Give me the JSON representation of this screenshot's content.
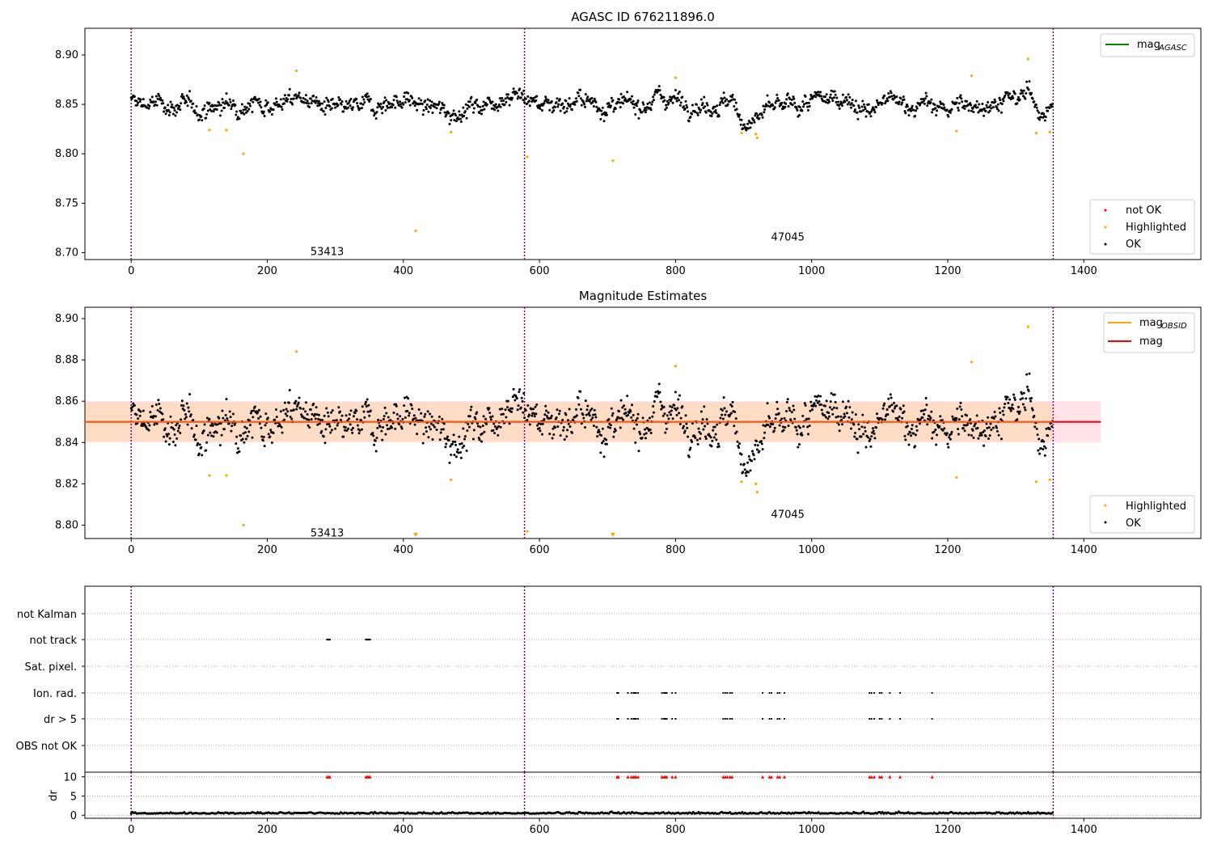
{
  "colors": {
    "ok": "#000000",
    "highlighted": "#ffa500",
    "not_ok": "#ff0000",
    "mag_agasc": "#008000",
    "mag_obsid": "#ffa500",
    "mag": "#ff0000",
    "obs_boundary": "#800080",
    "band_outer": "#ffc0cb",
    "band_inner": "#ffdab9"
  },
  "chart_data": [
    {
      "type": "scatter",
      "title": "AGASC ID 676211896.0",
      "xlim": [
        -68,
        1572
      ],
      "ylim": [
        8.693,
        8.927
      ],
      "xticks": [
        0,
        200,
        400,
        600,
        800,
        1000,
        1200,
        1400
      ],
      "yticks": [
        "8.70",
        "8.75",
        "8.80",
        "8.85",
        "8.90"
      ],
      "obs_boundaries": [
        0,
        578,
        1355
      ],
      "annotations": [
        {
          "text": "53413",
          "x": 288,
          "y": 8.7015
        },
        {
          "text": "47045",
          "x": 965,
          "y": 8.7165
        }
      ],
      "legend_lines": [
        {
          "label": "mag",
          "subscript": "AGASC",
          "color_key": "mag_agasc"
        }
      ],
      "legend_points": [
        {
          "label": "not OK",
          "color_key": "not_ok"
        },
        {
          "label": "Highlighted",
          "color_key": "highlighted"
        },
        {
          "label": "OK",
          "color_key": "ok"
        }
      ],
      "ok_trend": {
        "x": [
          0,
          60,
          110,
          160,
          220,
          250,
          300,
          360,
          400,
          440,
          470,
          520,
          560,
          600,
          660,
          720,
          780,
          840,
          880,
          905,
          940,
          1000,
          1050,
          1080,
          1110,
          1150,
          1200,
          1250,
          1300,
          1320,
          1340,
          1355
        ],
        "y": [
          8.852,
          8.849,
          8.845,
          8.852,
          8.851,
          8.858,
          8.842,
          8.85,
          8.855,
          8.846,
          8.842,
          8.851,
          8.862,
          8.851,
          8.853,
          8.846,
          8.858,
          8.85,
          8.852,
          8.83,
          8.845,
          8.851,
          8.86,
          8.84,
          8.853,
          8.85,
          8.846,
          8.851,
          8.854,
          8.862,
          8.843,
          8.843
        ]
      },
      "ok_spread": 0.0055,
      "ok_count": 1355,
      "highlighted": {
        "x": [
          115,
          140,
          165,
          243,
          418,
          470,
          582,
          708,
          800,
          897,
          918,
          920,
          1213,
          1235,
          1318,
          1330,
          1350
        ],
        "y": [
          8.824,
          8.824,
          8.8,
          8.884,
          8.722,
          8.822,
          8.797,
          8.793,
          8.877,
          8.821,
          8.82,
          8.816,
          8.823,
          8.879,
          8.896,
          8.821,
          8.822
        ]
      }
    },
    {
      "type": "scatter",
      "title": "Magnitude Estimates",
      "xlim": [
        -68,
        1572
      ],
      "ylim": [
        8.7935,
        8.9055
      ],
      "xticks": [
        0,
        200,
        400,
        600,
        800,
        1000,
        1200,
        1400
      ],
      "yticks": [
        "8.80",
        "8.82",
        "8.84",
        "8.86",
        "8.88",
        "8.90"
      ],
      "obs_boundaries": [
        0,
        578,
        1355
      ],
      "annotations": [
        {
          "text": "53413",
          "x": 288,
          "y": 8.7965
        },
        {
          "text": "47045",
          "x": 965,
          "y": 8.8055
        }
      ],
      "mag_line": 8.85,
      "band_outer": [
        8.84,
        8.86
      ],
      "band_outer_x": [
        -68,
        1425
      ],
      "band_inner": [
        8.8405,
        8.8595
      ],
      "band_inner_x": [
        -68,
        1355
      ],
      "offscale_markers_x": [
        418,
        708
      ],
      "legend_lines": [
        {
          "label": "mag",
          "subscript": "OBSID",
          "color_key": "mag_obsid"
        },
        {
          "label": "mag",
          "subscript": "",
          "color_key": "mag"
        }
      ],
      "legend_points": [
        {
          "label": "Highlighted",
          "color_key": "highlighted"
        },
        {
          "label": "OK",
          "color_key": "ok"
        }
      ]
    },
    {
      "type": "scatter",
      "flag_rows": [
        "not Kalman",
        "not track",
        "Sat. pixel.",
        "Ion. rad.",
        "dr > 5",
        "OBS not OK"
      ],
      "xlim": [
        -68,
        1572
      ],
      "xticks": [
        0,
        200,
        400,
        600,
        800,
        1000,
        1200,
        1400
      ],
      "obs_boundaries": [
        0,
        578,
        1355
      ],
      "not_track_x": [
        288,
        290,
        292,
        345,
        347,
        349,
        351
      ],
      "ion_rad_x": [
        714,
        716,
        730,
        735,
        738,
        740,
        742,
        745,
        780,
        783,
        785,
        787,
        795,
        800,
        870,
        873,
        876,
        880,
        883,
        928,
        938,
        941,
        950,
        953,
        960,
        1085,
        1088,
        1092,
        1100,
        1103,
        1115,
        1130,
        1177
      ],
      "dr_panel": {
        "ylabel": "dr",
        "yticks": [
          "0",
          "5",
          "10"
        ],
        "ylim": [
          -0.8,
          11.2
        ],
        "flag_level": 10,
        "typical": 0.4
      }
    }
  ]
}
